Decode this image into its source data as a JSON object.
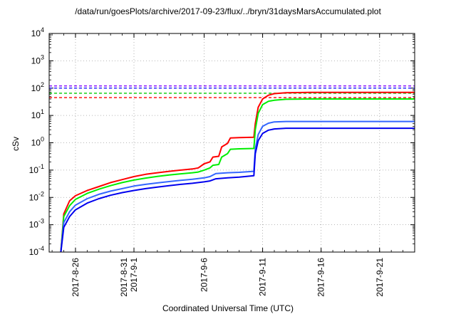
{
  "chart_data": {
    "type": "line",
    "title": "/data/run/goesPlots/archive/2017-09-23/flux/../bryn/31daysMarsAccumulated.plot",
    "xlabel": "Coordinated Universal Time (UTC)",
    "ylabel": "cSv",
    "yscale": "log",
    "ylim": [
      0.0001,
      10000
    ],
    "y_ticks": [
      {
        "base": "10",
        "exp": "-4"
      },
      {
        "base": "10",
        "exp": "-3"
      },
      {
        "base": "10",
        "exp": "-2"
      },
      {
        "base": "10",
        "exp": "-1"
      },
      {
        "base": "10",
        "exp": "0"
      },
      {
        "base": "10",
        "exp": "1"
      },
      {
        "base": "10",
        "exp": "2"
      },
      {
        "base": "10",
        "exp": "3"
      },
      {
        "base": "10",
        "exp": "4"
      }
    ],
    "xlim": [
      "2017-08-23T18:00",
      "2017-09-24T00:00"
    ],
    "x_ticks": [
      {
        "date": "2017-08-26",
        "lines": [
          "2017-8-26"
        ]
      },
      {
        "date": "2017-08-31",
        "lines": [
          "2017-8-31",
          "2017-9-1"
        ]
      },
      {
        "date": "2017-09-06",
        "lines": [
          "2017-9-6"
        ]
      },
      {
        "date": "2017-09-11",
        "lines": [
          "2017-9-11"
        ]
      },
      {
        "date": "2017-09-16",
        "lines": [
          "2017-9-16"
        ]
      },
      {
        "date": "2017-09-21",
        "lines": [
          "2017-9-21"
        ]
      }
    ],
    "grid": true,
    "reference_lines": [
      {
        "color": "#7f00ff",
        "value": 120
      },
      {
        "color": "#0000ff",
        "value": 100
      },
      {
        "color": "#00cc00",
        "value": 65
      },
      {
        "color": "#ff0000",
        "value": 45
      }
    ],
    "series": [
      {
        "color": "#ff0000",
        "points": [
          [
            "2017-08-24T18:00",
            0.0001
          ],
          [
            "2017-08-25T00:00",
            0.0025
          ],
          [
            "2017-08-25T12:00",
            0.0075
          ],
          [
            "2017-08-26T00:00",
            0.0115
          ],
          [
            "2017-08-27T00:00",
            0.018
          ],
          [
            "2017-08-28T00:00",
            0.025
          ],
          [
            "2017-08-29T00:00",
            0.035
          ],
          [
            "2017-08-30T00:00",
            0.045
          ],
          [
            "2017-08-31T00:00",
            0.058
          ],
          [
            "2017-09-01T00:00",
            0.07
          ],
          [
            "2017-09-02T00:00",
            0.08
          ],
          [
            "2017-09-03T00:00",
            0.09
          ],
          [
            "2017-09-04T00:00",
            0.1
          ],
          [
            "2017-09-05T00:00",
            0.11
          ],
          [
            "2017-09-05T12:00",
            0.12
          ],
          [
            "2017-09-06T00:00",
            0.17
          ],
          [
            "2017-09-06T12:00",
            0.2
          ],
          [
            "2017-09-06T18:00",
            0.3
          ],
          [
            "2017-09-07T06:00",
            0.32
          ],
          [
            "2017-09-07T12:00",
            0.7
          ],
          [
            "2017-09-08T00:00",
            0.95
          ],
          [
            "2017-09-08T06:00",
            1.5
          ],
          [
            "2017-09-09T00:00",
            1.55
          ],
          [
            "2017-09-10T06:00",
            1.6
          ],
          [
            "2017-09-10T09:00",
            5
          ],
          [
            "2017-09-10T15:00",
            20
          ],
          [
            "2017-09-11T00:00",
            40
          ],
          [
            "2017-09-11T12:00",
            55
          ],
          [
            "2017-09-12T00:00",
            63
          ],
          [
            "2017-09-13T00:00",
            68
          ],
          [
            "2017-09-15T00:00",
            70
          ],
          [
            "2017-09-24T00:00",
            70
          ]
        ]
      },
      {
        "color": "#00ee00",
        "points": [
          [
            "2017-08-24T18:00",
            0.0001
          ],
          [
            "2017-08-25T00:00",
            0.002
          ],
          [
            "2017-08-25T12:00",
            0.005
          ],
          [
            "2017-08-26T00:00",
            0.0085
          ],
          [
            "2017-08-27T00:00",
            0.014
          ],
          [
            "2017-08-28T00:00",
            0.02
          ],
          [
            "2017-08-29T00:00",
            0.027
          ],
          [
            "2017-08-30T00:00",
            0.035
          ],
          [
            "2017-08-31T00:00",
            0.043
          ],
          [
            "2017-09-01T00:00",
            0.051
          ],
          [
            "2017-09-02T00:00",
            0.059
          ],
          [
            "2017-09-03T00:00",
            0.066
          ],
          [
            "2017-09-04T00:00",
            0.073
          ],
          [
            "2017-09-05T00:00",
            0.08
          ],
          [
            "2017-09-05T12:00",
            0.085
          ],
          [
            "2017-09-06T00:00",
            0.1
          ],
          [
            "2017-09-06T12:00",
            0.12
          ],
          [
            "2017-09-06T18:00",
            0.15
          ],
          [
            "2017-09-07T06:00",
            0.16
          ],
          [
            "2017-09-07T12:00",
            0.3
          ],
          [
            "2017-09-08T00:00",
            0.4
          ],
          [
            "2017-09-08T06:00",
            0.58
          ],
          [
            "2017-09-09T00:00",
            0.6
          ],
          [
            "2017-09-10T06:00",
            0.62
          ],
          [
            "2017-09-10T09:00",
            3
          ],
          [
            "2017-09-10T15:00",
            12
          ],
          [
            "2017-09-11T00:00",
            25
          ],
          [
            "2017-09-11T12:00",
            33
          ],
          [
            "2017-09-12T00:00",
            36
          ],
          [
            "2017-09-13T00:00",
            39
          ],
          [
            "2017-09-15T00:00",
            40
          ],
          [
            "2017-09-24T00:00",
            40
          ]
        ]
      },
      {
        "color": "#3366ff",
        "points": [
          [
            "2017-08-24T18:00",
            0.0001
          ],
          [
            "2017-08-25T00:00",
            0.0012
          ],
          [
            "2017-08-25T12:00",
            0.003
          ],
          [
            "2017-08-26T00:00",
            0.0052
          ],
          [
            "2017-08-27T00:00",
            0.009
          ],
          [
            "2017-08-28T00:00",
            0.013
          ],
          [
            "2017-08-29T00:00",
            0.017
          ],
          [
            "2017-08-30T00:00",
            0.021
          ],
          [
            "2017-08-31T00:00",
            0.026
          ],
          [
            "2017-09-01T00:00",
            0.03
          ],
          [
            "2017-09-02T00:00",
            0.034
          ],
          [
            "2017-09-03T00:00",
            0.038
          ],
          [
            "2017-09-04T00:00",
            0.042
          ],
          [
            "2017-09-05T00:00",
            0.046
          ],
          [
            "2017-09-06T00:00",
            0.052
          ],
          [
            "2017-09-06T12:00",
            0.058
          ],
          [
            "2017-09-07T00:00",
            0.075
          ],
          [
            "2017-09-08T00:00",
            0.08
          ],
          [
            "2017-09-09T00:00",
            0.083
          ],
          [
            "2017-09-10T06:00",
            0.09
          ],
          [
            "2017-09-10T09:00",
            0.6
          ],
          [
            "2017-09-10T15:00",
            2
          ],
          [
            "2017-09-11T00:00",
            4
          ],
          [
            "2017-09-11T12:00",
            5.2
          ],
          [
            "2017-09-12T00:00",
            5.8
          ],
          [
            "2017-09-13T00:00",
            6
          ],
          [
            "2017-09-24T00:00",
            6
          ]
        ]
      },
      {
        "color": "#0000ee",
        "points": [
          [
            "2017-08-24T18:00",
            0.0001
          ],
          [
            "2017-08-25T00:00",
            0.0008
          ],
          [
            "2017-08-25T12:00",
            0.002
          ],
          [
            "2017-08-26T00:00",
            0.0035
          ],
          [
            "2017-08-27T00:00",
            0.0062
          ],
          [
            "2017-08-28T00:00",
            0.009
          ],
          [
            "2017-08-29T00:00",
            0.012
          ],
          [
            "2017-08-30T00:00",
            0.015
          ],
          [
            "2017-08-31T00:00",
            0.018
          ],
          [
            "2017-09-01T00:00",
            0.021
          ],
          [
            "2017-09-02T00:00",
            0.024
          ],
          [
            "2017-09-03T00:00",
            0.027
          ],
          [
            "2017-09-04T00:00",
            0.03
          ],
          [
            "2017-09-05T00:00",
            0.033
          ],
          [
            "2017-09-06T00:00",
            0.037
          ],
          [
            "2017-09-06T12:00",
            0.04
          ],
          [
            "2017-09-07T00:00",
            0.048
          ],
          [
            "2017-09-08T00:00",
            0.052
          ],
          [
            "2017-09-09T00:00",
            0.055
          ],
          [
            "2017-09-10T06:00",
            0.062
          ],
          [
            "2017-09-10T09:00",
            0.4
          ],
          [
            "2017-09-10T15:00",
            1.2
          ],
          [
            "2017-09-11T00:00",
            2.2
          ],
          [
            "2017-09-11T12:00",
            2.9
          ],
          [
            "2017-09-12T00:00",
            3.2
          ],
          [
            "2017-09-13T00:00",
            3.4
          ],
          [
            "2017-09-24T00:00",
            3.4
          ]
        ]
      }
    ]
  }
}
